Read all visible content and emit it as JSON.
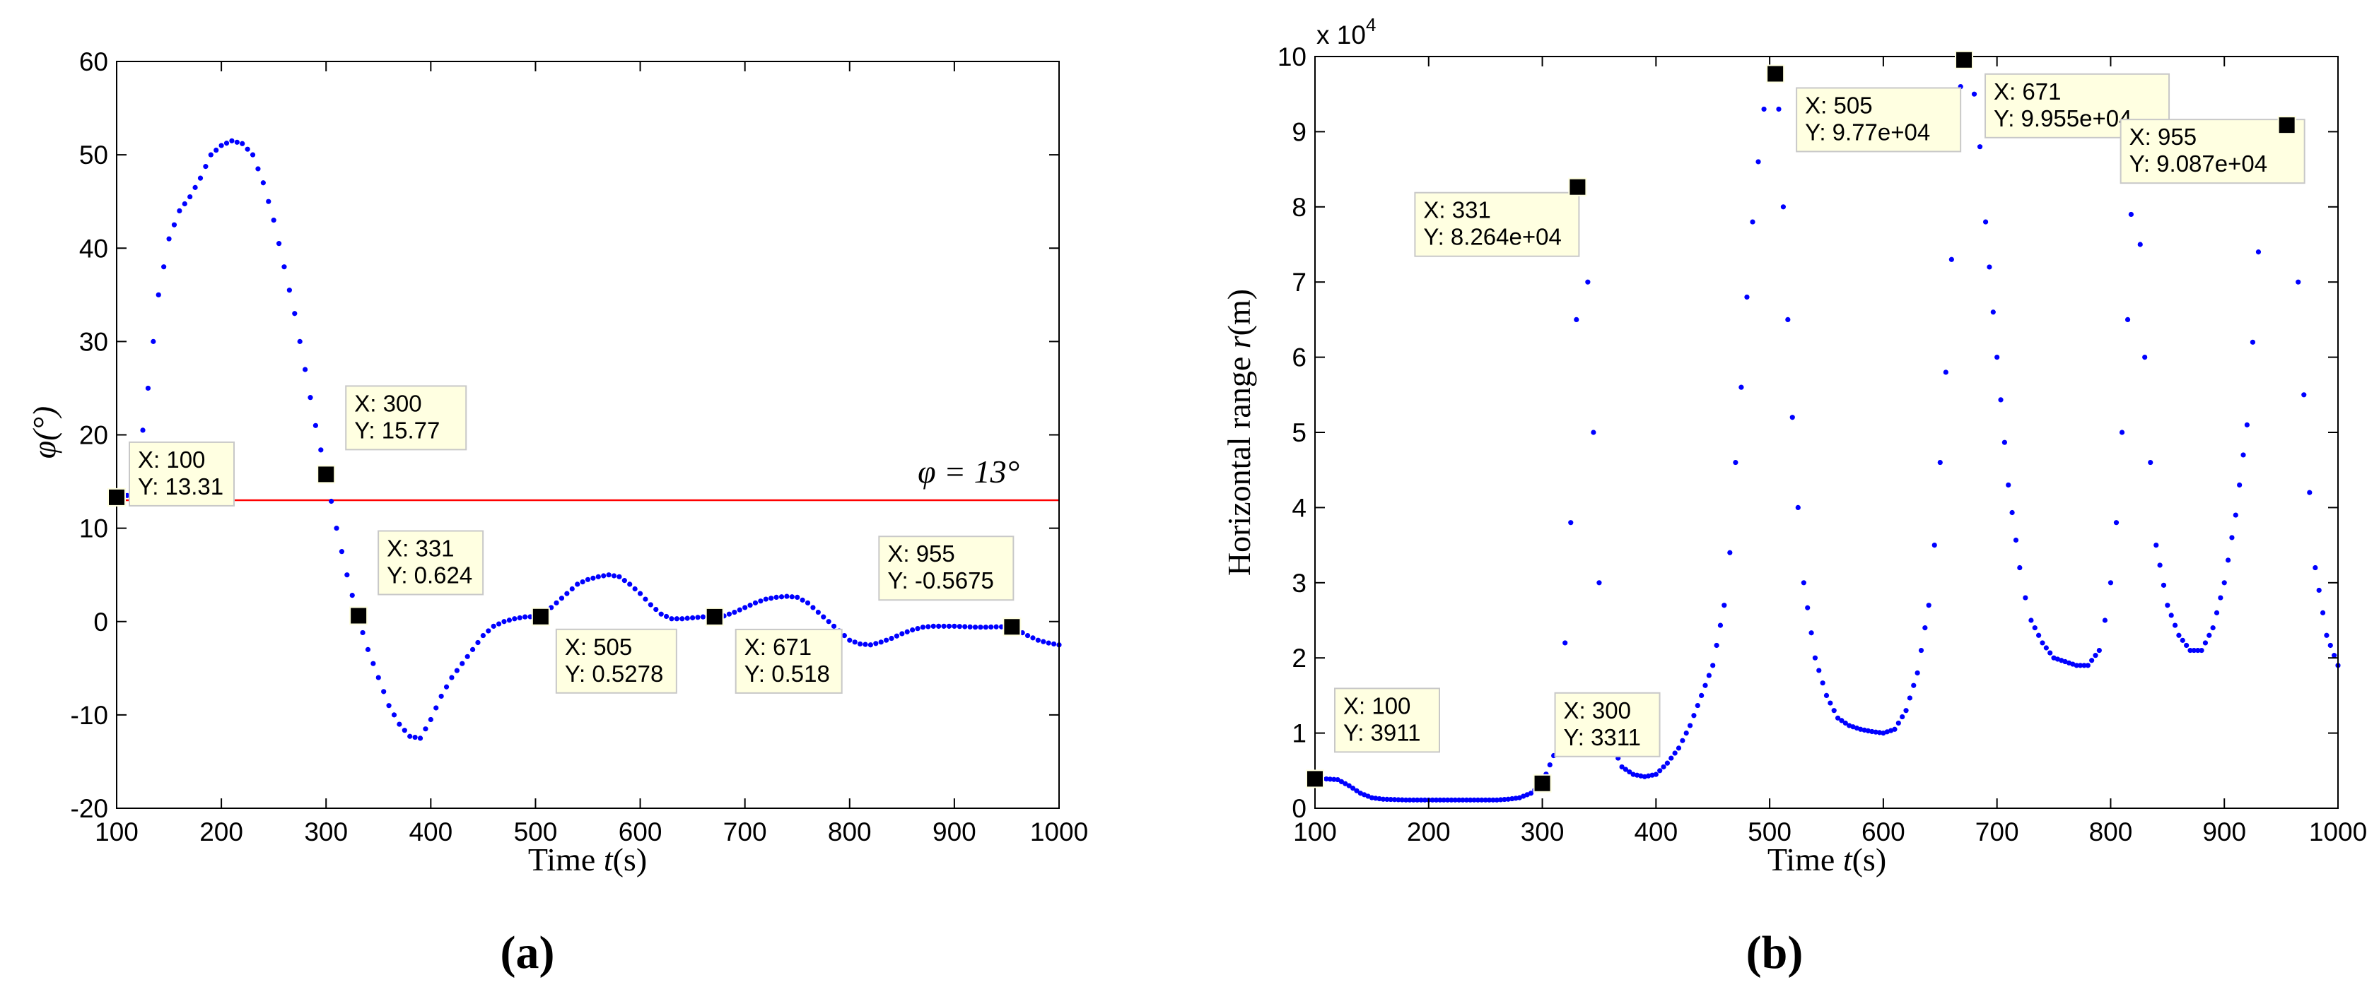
{
  "chart_data": [
    {
      "type": "scatter",
      "panel_label": "(a)",
      "xlabel_prefix": "Time ",
      "xlabel_var": "t",
      "xlabel_unit": "(s)",
      "ylabel": "φ(°)",
      "xlim": [
        100,
        1000
      ],
      "ylim": [
        -20,
        60
      ],
      "xticks": [
        100,
        200,
        300,
        400,
        500,
        600,
        700,
        800,
        900,
        1000
      ],
      "yticks": [
        -20,
        -10,
        0,
        10,
        20,
        30,
        40,
        50,
        60
      ],
      "series": [
        {
          "name": "phi",
          "color": "#0000ff",
          "x": [
            100,
            110,
            120,
            130,
            140,
            150,
            160,
            170,
            180,
            190,
            200,
            210,
            220,
            230,
            240,
            250,
            260,
            270,
            280,
            290,
            300,
            310,
            320,
            330,
            340,
            350,
            360,
            370,
            380,
            390,
            400,
            410,
            420,
            430,
            440,
            450,
            460,
            470,
            480,
            490,
            500,
            510,
            520,
            530,
            540,
            550,
            560,
            570,
            580,
            590,
            600,
            610,
            620,
            630,
            640,
            650,
            660,
            670,
            680,
            690,
            700,
            710,
            720,
            730,
            740,
            750,
            760,
            770,
            780,
            790,
            800,
            810,
            820,
            830,
            840,
            850,
            860,
            870,
            880,
            890,
            900,
            910,
            920,
            930,
            940,
            950,
            960,
            970,
            980,
            990,
            1000
          ],
          "y": [
            13.31,
            13.5,
            16,
            25,
            35,
            41,
            44,
            45.5,
            47.5,
            50,
            51,
            51.5,
            51.2,
            50,
            47,
            43,
            38,
            33,
            27,
            21,
            15.77,
            10,
            5,
            0.624,
            -3,
            -6,
            -9,
            -11,
            -12.3,
            -12.5,
            -10.5,
            -8,
            -6,
            -4.5,
            -3,
            -1.5,
            -0.5,
            0,
            0.3,
            0.5,
            0.5278,
            1,
            2,
            3,
            4,
            4.5,
            4.8,
            5,
            4.8,
            4,
            3,
            1.8,
            0.8,
            0.3,
            0.3,
            0.4,
            0.5,
            0.518,
            0.6,
            1,
            1.5,
            2,
            2.4,
            2.6,
            2.7,
            2.6,
            2,
            1,
            0,
            -1,
            -2,
            -2.4,
            -2.5,
            -2.2,
            -1.8,
            -1.3,
            -0.9,
            -0.6,
            -0.5,
            -0.5,
            -0.5,
            -0.55,
            -0.6,
            -0.6,
            -0.5675,
            -0.5675,
            -0.9,
            -1.5,
            -2,
            -2.3,
            -2.5
          ]
        }
      ],
      "reference_line": {
        "y": 13,
        "color": "#ff0000",
        "label": "φ = 13°"
      },
      "datatips": [
        {
          "x": 100,
          "y": 13.31,
          "lines": [
            "X: 100",
            "Y: 13.31"
          ]
        },
        {
          "x": 300,
          "y": 15.77,
          "lines": [
            "X: 300",
            "Y: 15.77"
          ]
        },
        {
          "x": 331,
          "y": 0.624,
          "lines": [
            "X: 331",
            "Y: 0.624"
          ]
        },
        {
          "x": 505,
          "y": 0.5278,
          "lines": [
            "X: 505",
            "Y: 0.5278"
          ]
        },
        {
          "x": 671,
          "y": 0.518,
          "lines": [
            "X: 671",
            "Y: 0.518"
          ]
        },
        {
          "x": 955,
          "y": -0.5675,
          "lines": [
            "X: 955",
            "Y: -0.5675"
          ]
        }
      ]
    },
    {
      "type": "scatter",
      "panel_label": "(b)",
      "xlabel_prefix": "Time ",
      "xlabel_var": "t",
      "xlabel_unit": "(s)",
      "ylabel_prefix": "Horizontal range ",
      "ylabel_var": "r",
      "ylabel_unit": "(m)",
      "exponent_base": "x 10",
      "exponent_power": "4",
      "xlim": [
        100,
        1000
      ],
      "ylim": [
        0,
        10
      ],
      "xticks": [
        100,
        200,
        300,
        400,
        500,
        600,
        700,
        800,
        900,
        1000
      ],
      "yticks": [
        0,
        1,
        2,
        3,
        4,
        5,
        6,
        7,
        8,
        9,
        10
      ],
      "series": [
        {
          "name": "range (x 10^4 m)",
          "color": "#0000ff",
          "x": [
            100,
            110,
            120,
            130,
            140,
            150,
            160,
            170,
            180,
            190,
            200,
            210,
            220,
            230,
            240,
            250,
            260,
            270,
            280,
            290,
            300,
            310,
            315,
            320,
            325,
            330,
            335,
            340,
            345,
            350,
            355,
            360,
            370,
            380,
            390,
            400,
            410,
            420,
            430,
            440,
            450,
            460,
            465,
            470,
            475,
            480,
            485,
            490,
            495,
            500,
            503,
            505,
            508,
            512,
            516,
            520,
            525,
            530,
            540,
            550,
            560,
            570,
            580,
            590,
            600,
            610,
            620,
            630,
            640,
            645,
            650,
            655,
            660,
            665,
            668,
            671,
            675,
            680,
            685,
            690,
            700,
            710,
            720,
            725,
            730,
            740,
            750,
            760,
            770,
            780,
            790,
            795,
            800,
            805,
            810,
            815,
            818,
            822,
            826,
            830,
            835,
            840,
            850,
            860,
            870,
            880,
            890,
            900,
            910,
            920,
            925,
            930,
            935,
            940,
            945,
            950,
            955,
            960,
            965,
            970,
            975,
            980,
            990,
            1000
          ],
          "y": [
            0.3911,
            0.39,
            0.38,
            0.3,
            0.2,
            0.14,
            0.12,
            0.115,
            0.11,
            0.11,
            0.11,
            0.11,
            0.11,
            0.11,
            0.11,
            0.11,
            0.11,
            0.12,
            0.14,
            0.2,
            0.3311,
            0.7,
            1.2,
            2.2,
            3.8,
            6.5,
            8.264,
            7.0,
            5.0,
            3.0,
            1.5,
            0.9,
            0.55,
            0.45,
            0.42,
            0.45,
            0.6,
            0.8,
            1.1,
            1.5,
            1.9,
            2.7,
            3.4,
            4.6,
            5.6,
            6.8,
            7.8,
            8.6,
            9.3,
            9.7,
            9.77,
            9.77,
            9.3,
            8.0,
            6.5,
            5.2,
            4.0,
            3.0,
            2.0,
            1.5,
            1.2,
            1.1,
            1.05,
            1.02,
            1.0,
            1.05,
            1.3,
            1.8,
            2.7,
            3.5,
            4.6,
            5.8,
            7.3,
            8.8,
            9.6,
            9.955,
            9.9,
            9.5,
            8.8,
            7.8,
            6.0,
            4.3,
            3.2,
            2.8,
            2.5,
            2.2,
            2.0,
            1.95,
            1.9,
            1.9,
            2.1,
            2.5,
            3.0,
            3.8,
            5.0,
            6.5,
            7.9,
            8.8,
            7.5,
            6.0,
            4.6,
            3.5,
            2.7,
            2.3,
            2.1,
            2.1,
            2.4,
            3.0,
            3.9,
            5.1,
            6.2,
            7.4,
            8.5,
            9.0,
            9.087,
            9.087,
            9.087,
            8.5,
            7.0,
            5.5,
            4.2,
            3.2,
            2.3,
            1.9
          ]
        }
      ],
      "datatips": [
        {
          "x": 100,
          "y": 0.3911,
          "lines": [
            "X: 100",
            "Y: 3911"
          ]
        },
        {
          "x": 300,
          "y": 0.3311,
          "lines": [
            "X: 300",
            "Y: 3311"
          ]
        },
        {
          "x": 331,
          "y": 8.264,
          "lines": [
            "X: 331",
            "Y: 8.264e+04"
          ]
        },
        {
          "x": 505,
          "y": 9.77,
          "lines": [
            "X: 505",
            "Y: 9.77e+04"
          ]
        },
        {
          "x": 671,
          "y": 9.955,
          "lines": [
            "X: 671",
            "Y: 9.955e+04"
          ]
        },
        {
          "x": 955,
          "y": 9.087,
          "lines": [
            "X: 955",
            "Y: 9.087e+04"
          ]
        }
      ]
    }
  ]
}
